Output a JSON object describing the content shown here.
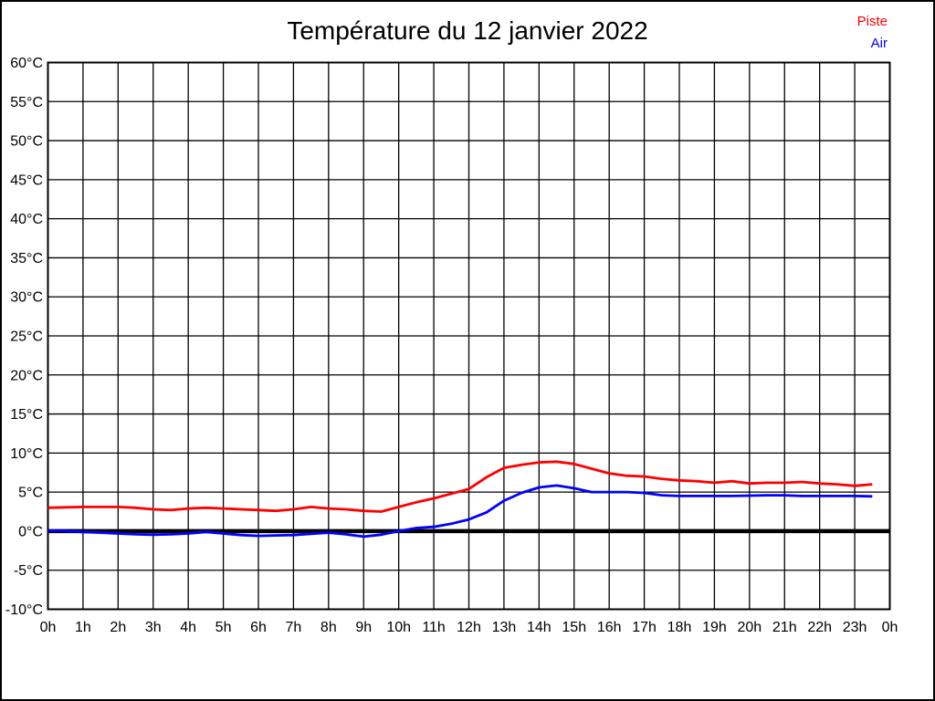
{
  "title": "Température du 12 janvier 2022",
  "legend": {
    "items": [
      {
        "label": "Piste",
        "color": "#ff0000"
      },
      {
        "label": "Air",
        "color": "#0000ff"
      }
    ]
  },
  "chart_data": {
    "type": "line",
    "title": "Température du 12 janvier 2022",
    "xlabel": "",
    "ylabel": "",
    "x_unit": "h",
    "x_start": 0,
    "x_step": 0.5,
    "x_range": [
      0,
      24
    ],
    "x_tick_labels": [
      "0h",
      "1h",
      "2h",
      "3h",
      "4h",
      "5h",
      "6h",
      "7h",
      "8h",
      "9h",
      "10h",
      "11h",
      "12h",
      "13h",
      "14h",
      "15h",
      "16h",
      "17h",
      "18h",
      "19h",
      "20h",
      "21h",
      "22h",
      "23h",
      "0h"
    ],
    "ylim": [
      -10,
      60
    ],
    "y_tick_step": 5,
    "y_tick_suffix": "°C",
    "grid": true,
    "zero_line": true,
    "legend_position": "top-right",
    "series": [
      {
        "name": "Piste",
        "color": "#ff0000",
        "values": [
          3.0,
          3.05,
          3.1,
          3.1,
          3.1,
          3.0,
          2.8,
          2.7,
          2.9,
          3.0,
          2.9,
          2.8,
          2.7,
          2.6,
          2.8,
          3.1,
          2.9,
          2.8,
          2.6,
          2.5,
          3.1,
          3.7,
          4.2,
          4.8,
          5.4,
          6.9,
          8.1,
          8.5,
          8.8,
          8.9,
          8.6,
          8.0,
          7.4,
          7.1,
          7.0,
          6.7,
          6.5,
          6.4,
          6.2,
          6.4,
          6.1,
          6.2,
          6.2,
          6.3,
          6.1,
          6.0,
          5.8,
          6.0
        ]
      },
      {
        "name": "Air",
        "color": "#0000ff",
        "values": [
          0.1,
          0.0,
          -0.1,
          -0.2,
          -0.3,
          -0.4,
          -0.45,
          -0.4,
          -0.3,
          -0.1,
          -0.3,
          -0.5,
          -0.6,
          -0.55,
          -0.5,
          -0.35,
          -0.2,
          -0.4,
          -0.7,
          -0.45,
          0.0,
          0.4,
          0.55,
          0.95,
          1.5,
          2.4,
          3.9,
          4.9,
          5.6,
          5.85,
          5.5,
          5.0,
          5.0,
          5.0,
          4.9,
          4.6,
          4.5,
          4.5,
          4.5,
          4.5,
          4.55,
          4.6,
          4.6,
          4.5,
          4.5,
          4.5,
          4.5,
          4.45
        ]
      }
    ]
  }
}
